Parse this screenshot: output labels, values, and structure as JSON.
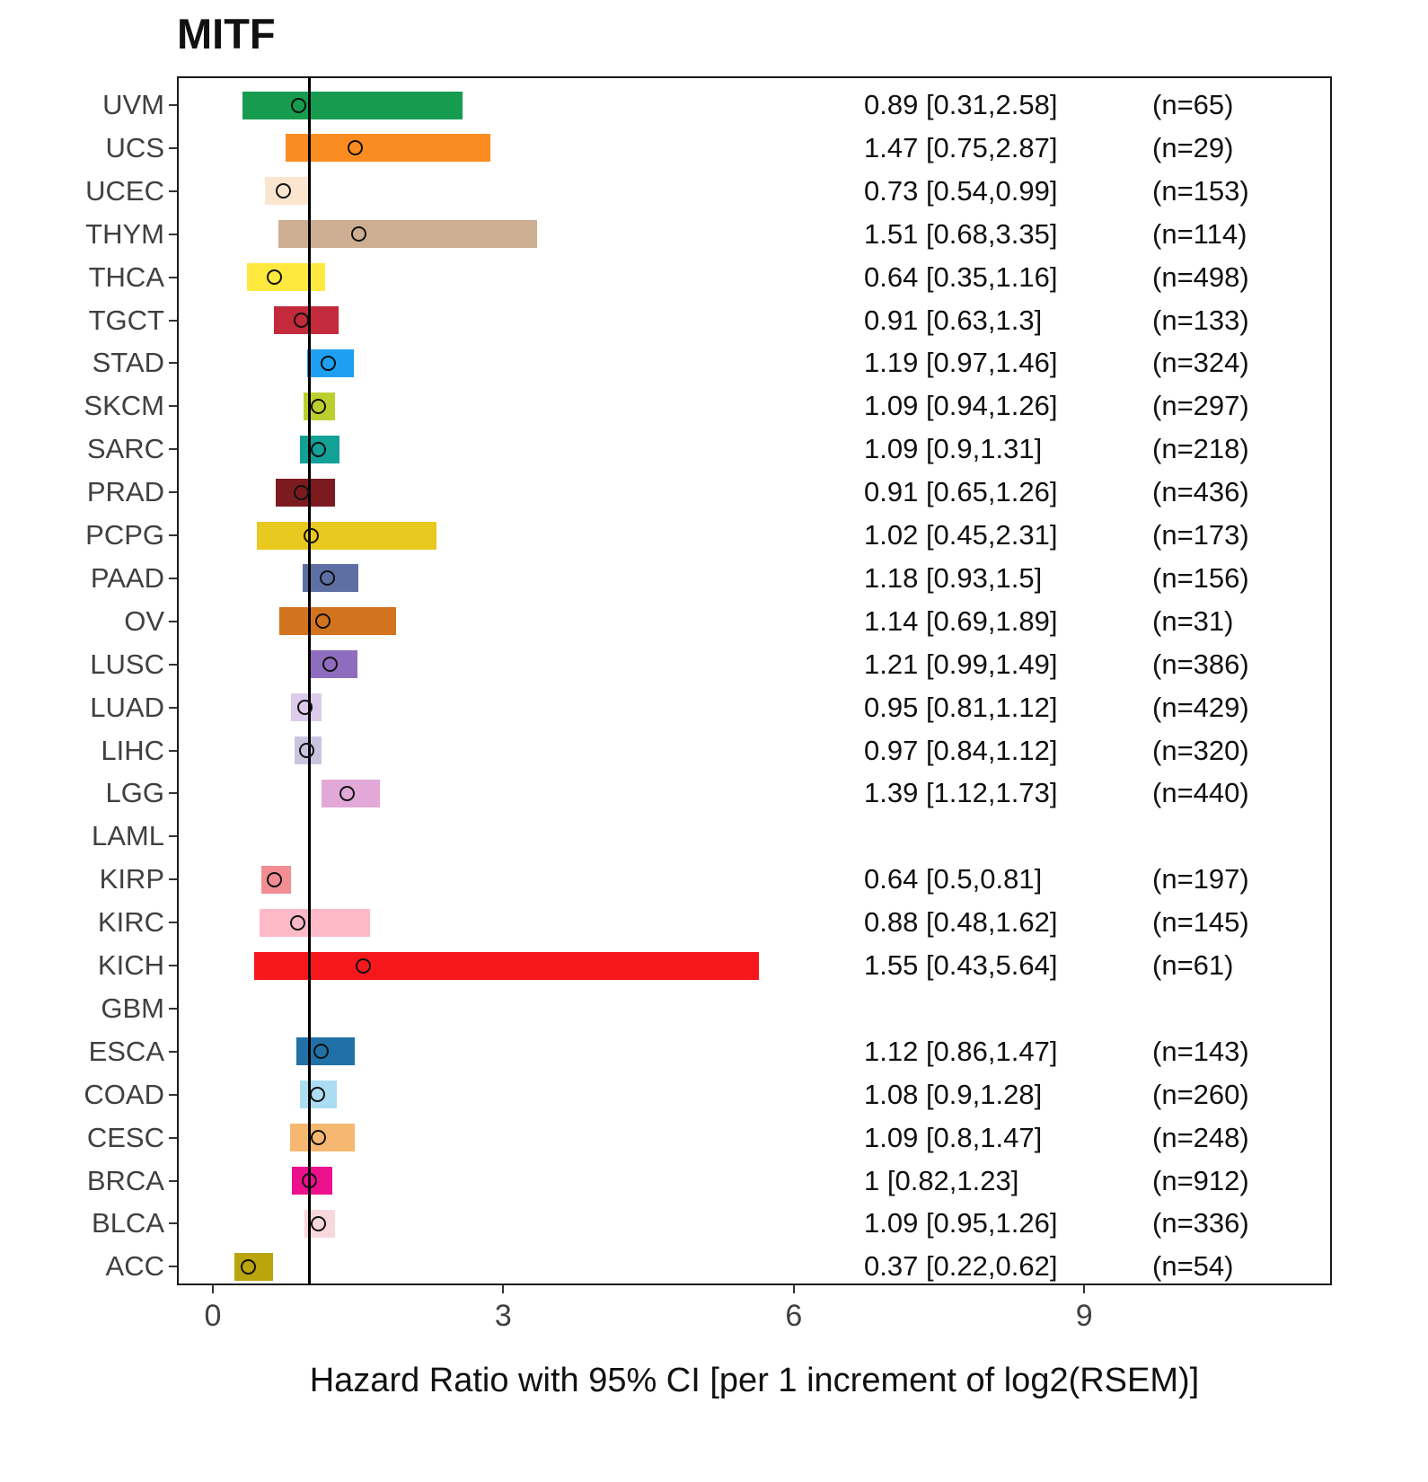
{
  "chart_data": {
    "type": "forest",
    "title": "MITF",
    "xlabel": "Hazard Ratio with 95% CI [per 1 increment of log2(RSEM)]",
    "x_ticks": [
      0,
      3,
      6,
      9
    ],
    "xlim": [
      -0.37,
      11.55
    ],
    "reference_line_x": 1,
    "grid": false,
    "rows": [
      {
        "label": "UVM",
        "hr": 0.89,
        "ci_low": 0.31,
        "ci_high": 2.58,
        "n": 65,
        "hr_text": "0.89 [0.31,2.58]",
        "n_text": "(n=65)",
        "color": "#179C4F"
      },
      {
        "label": "UCS",
        "hr": 1.47,
        "ci_low": 0.75,
        "ci_high": 2.87,
        "n": 29,
        "hr_text": "1.47 [0.75,2.87]",
        "n_text": "(n=29)",
        "color": "#FB8C22"
      },
      {
        "label": "UCEC",
        "hr": 0.73,
        "ci_low": 0.54,
        "ci_high": 0.99,
        "n": 153,
        "hr_text": "0.73 [0.54,0.99]",
        "n_text": "(n=153)",
        "color": "#FBE5CF"
      },
      {
        "label": "THYM",
        "hr": 1.51,
        "ci_low": 0.68,
        "ci_high": 3.35,
        "n": 114,
        "hr_text": "1.51 [0.68,3.35]",
        "n_text": "(n=114)",
        "color": "#CEAE92"
      },
      {
        "label": "THCA",
        "hr": 0.64,
        "ci_low": 0.35,
        "ci_high": 1.16,
        "n": 498,
        "hr_text": "0.64 [0.35,1.16]",
        "n_text": "(n=498)",
        "color": "#FFE93F"
      },
      {
        "label": "TGCT",
        "hr": 0.91,
        "ci_low": 0.63,
        "ci_high": 1.3,
        "n": 133,
        "hr_text": "0.91 [0.63,1.3]",
        "n_text": "(n=133)",
        "color": "#C32A3B"
      },
      {
        "label": "STAD",
        "hr": 1.19,
        "ci_low": 0.97,
        "ci_high": 1.46,
        "n": 324,
        "hr_text": "1.19 [0.97,1.46]",
        "n_text": "(n=324)",
        "color": "#1E9FF2"
      },
      {
        "label": "SKCM",
        "hr": 1.09,
        "ci_low": 0.94,
        "ci_high": 1.26,
        "n": 297,
        "hr_text": "1.09 [0.94,1.26]",
        "n_text": "(n=297)",
        "color": "#BCCF2E"
      },
      {
        "label": "SARC",
        "hr": 1.09,
        "ci_low": 0.9,
        "ci_high": 1.31,
        "n": 218,
        "hr_text": "1.09 [0.9,1.31]",
        "n_text": "(n=218)",
        "color": "#13A097"
      },
      {
        "label": "PRAD",
        "hr": 0.91,
        "ci_low": 0.65,
        "ci_high": 1.26,
        "n": 436,
        "hr_text": "0.91 [0.65,1.26]",
        "n_text": "(n=436)",
        "color": "#7B1B20"
      },
      {
        "label": "PCPG",
        "hr": 1.02,
        "ci_low": 0.45,
        "ci_high": 2.31,
        "n": 173,
        "hr_text": "1.02 [0.45,2.31]",
        "n_text": "(n=173)",
        "color": "#E9C81F"
      },
      {
        "label": "PAAD",
        "hr": 1.18,
        "ci_low": 0.93,
        "ci_high": 1.5,
        "n": 156,
        "hr_text": "1.18 [0.93,1.5]",
        "n_text": "(n=156)",
        "color": "#5E6FA3"
      },
      {
        "label": "OV",
        "hr": 1.14,
        "ci_low": 0.69,
        "ci_high": 1.89,
        "n": 31,
        "hr_text": "1.14 [0.69,1.89]",
        "n_text": "(n=31)",
        "color": "#D2731E"
      },
      {
        "label": "LUSC",
        "hr": 1.21,
        "ci_low": 0.99,
        "ci_high": 1.49,
        "n": 386,
        "hr_text": "1.21 [0.99,1.49]",
        "n_text": "(n=386)",
        "color": "#8F6DBE"
      },
      {
        "label": "LUAD",
        "hr": 0.95,
        "ci_low": 0.81,
        "ci_high": 1.12,
        "n": 429,
        "hr_text": "0.95 [0.81,1.12]",
        "n_text": "(n=429)",
        "color": "#DCCBEA"
      },
      {
        "label": "LIHC",
        "hr": 0.97,
        "ci_low": 0.84,
        "ci_high": 1.12,
        "n": 320,
        "hr_text": "0.97 [0.84,1.12]",
        "n_text": "(n=320)",
        "color": "#C9C5E1"
      },
      {
        "label": "LGG",
        "hr": 1.39,
        "ci_low": 1.12,
        "ci_high": 1.73,
        "n": 440,
        "hr_text": "1.39 [1.12,1.73]",
        "n_text": "(n=440)",
        "color": "#E2A9D8"
      },
      {
        "label": "LAML",
        "hr": null,
        "ci_low": null,
        "ci_high": null,
        "n": null,
        "hr_text": "",
        "n_text": "",
        "color": null
      },
      {
        "label": "KIRP",
        "hr": 0.64,
        "ci_low": 0.5,
        "ci_high": 0.81,
        "n": 197,
        "hr_text": "0.64 [0.5,0.81]",
        "n_text": "(n=197)",
        "color": "#F28D93"
      },
      {
        "label": "KIRC",
        "hr": 0.88,
        "ci_low": 0.48,
        "ci_high": 1.62,
        "n": 145,
        "hr_text": "0.88 [0.48,1.62]",
        "n_text": "(n=145)",
        "color": "#FDBAC6"
      },
      {
        "label": "KICH",
        "hr": 1.55,
        "ci_low": 0.43,
        "ci_high": 5.64,
        "n": 61,
        "hr_text": "1.55 [0.43,5.64]",
        "n_text": "(n=61)",
        "color": "#F6171D"
      },
      {
        "label": "GBM",
        "hr": null,
        "ci_low": null,
        "ci_high": null,
        "n": null,
        "hr_text": "",
        "n_text": "",
        "color": null
      },
      {
        "label": "ESCA",
        "hr": 1.12,
        "ci_low": 0.86,
        "ci_high": 1.47,
        "n": 143,
        "hr_text": "1.12 [0.86,1.47]",
        "n_text": "(n=143)",
        "color": "#2171A8"
      },
      {
        "label": "COAD",
        "hr": 1.08,
        "ci_low": 0.9,
        "ci_high": 1.28,
        "n": 260,
        "hr_text": "1.08 [0.9,1.28]",
        "n_text": "(n=260)",
        "color": "#ABDCF1"
      },
      {
        "label": "CESC",
        "hr": 1.09,
        "ci_low": 0.8,
        "ci_high": 1.47,
        "n": 248,
        "hr_text": "1.09 [0.8,1.47]",
        "n_text": "(n=248)",
        "color": "#F6B871"
      },
      {
        "label": "BRCA",
        "hr": 1.0,
        "ci_low": 0.82,
        "ci_high": 1.23,
        "n": 912,
        "hr_text": "1 [0.82,1.23]",
        "n_text": "(n=912)",
        "color": "#EC108C"
      },
      {
        "label": "BLCA",
        "hr": 1.09,
        "ci_low": 0.95,
        "ci_high": 1.26,
        "n": 336,
        "hr_text": "1.09 [0.95,1.26]",
        "n_text": "(n=336)",
        "color": "#F8D8DC"
      },
      {
        "label": "ACC",
        "hr": 0.37,
        "ci_low": 0.22,
        "ci_high": 0.62,
        "n": 54,
        "hr_text": "0.37 [0.22,0.62]",
        "n_text": "(n=54)",
        "color": "#BAA50C"
      }
    ]
  }
}
